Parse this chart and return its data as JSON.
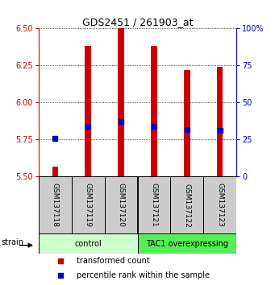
{
  "title": "GDS2451 / 261903_at",
  "samples": [
    "GSM137118",
    "GSM137119",
    "GSM137120",
    "GSM137121",
    "GSM137122",
    "GSM137123"
  ],
  "red_values": [
    5.57,
    6.38,
    6.5,
    6.38,
    6.22,
    6.24
  ],
  "blue_values": [
    5.76,
    5.84,
    5.87,
    5.84,
    5.82,
    5.81
  ],
  "y_min": 5.5,
  "y_max": 6.5,
  "y_ticks": [
    5.5,
    5.75,
    6.0,
    6.25,
    6.5
  ],
  "right_tick_values": [
    0,
    25,
    50,
    75,
    100
  ],
  "bar_width": 0.18,
  "red_color": "#cc0000",
  "blue_color": "#0000cc",
  "group_labels": [
    "control",
    "TAC1 overexpressing"
  ],
  "control_bg": "#ccffcc",
  "overexp_bg": "#55ee55",
  "sample_bg": "#cccccc",
  "legend_red": "transformed count",
  "legend_blue": "percentile rank within the sample",
  "strain_label": "strain",
  "title_fontsize": 9,
  "tick_fontsize": 7,
  "label_fontsize": 6.5,
  "group_fontsize": 7,
  "legend_fontsize": 7
}
